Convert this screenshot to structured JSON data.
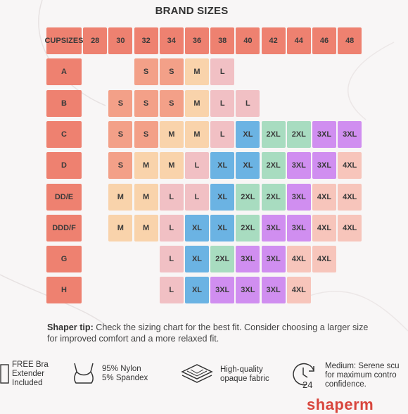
{
  "title": "BRAND SIZES",
  "cup_header": "CUP\nSIZES",
  "band_sizes": [
    "28",
    "30",
    "32",
    "34",
    "36",
    "38",
    "40",
    "42",
    "44",
    "46",
    "48"
  ],
  "rows": [
    {
      "cup": "A",
      "start": 2,
      "sizes": [
        "S",
        "S",
        "M",
        "L"
      ]
    },
    {
      "cup": "B",
      "start": 1,
      "sizes": [
        "S",
        "S",
        "S",
        "M",
        "L",
        "L"
      ]
    },
    {
      "cup": "C",
      "start": 1,
      "sizes": [
        "S",
        "S",
        "M",
        "M",
        "L",
        "XL",
        "2XL",
        "2XL",
        "3XL",
        "3XL"
      ]
    },
    {
      "cup": "D",
      "start": 1,
      "sizes": [
        "S",
        "M",
        "M",
        "L",
        "XL",
        "XL",
        "2XL",
        "3XL",
        "3XL",
        "4XL"
      ]
    },
    {
      "cup": "DD/E",
      "start": 1,
      "sizes": [
        "M",
        "M",
        "L",
        "L",
        "XL",
        "2XL",
        "2XL",
        "3XL",
        "4XL",
        "4XL"
      ]
    },
    {
      "cup": "DDD/F",
      "start": 1,
      "sizes": [
        "M",
        "M",
        "L",
        "XL",
        "XL",
        "2XL",
        "3XL",
        "3XL",
        "4XL",
        "4XL"
      ]
    },
    {
      "cup": "G",
      "start": 3,
      "sizes": [
        "L",
        "XL",
        "2XL",
        "3XL",
        "3XL",
        "4XL",
        "4XL"
      ]
    },
    {
      "cup": "H",
      "start": 3,
      "sizes": [
        "L",
        "XL",
        "3XL",
        "3XL",
        "3XL",
        "4XL"
      ]
    }
  ],
  "size_colors": {
    "S": "#f3a088",
    "M": "#f9d3ab",
    "L": "#f1c0c4",
    "XL": "#6bb3e3",
    "2XL": "#a8dcc0",
    "3XL": "#d08ef0",
    "4XL": "#f7c5bb"
  },
  "header_color": "#ee8170",
  "tip": {
    "label": "Shaper tip:",
    "text": " Check the sizing chart for the best fit. Consider choosing a larger size for improved comfort and a more relaxed fit."
  },
  "features": [
    {
      "icon": "bra-extender-icon",
      "text": "FREE Bra\nExtender\nIncluded"
    },
    {
      "icon": "bra-icon",
      "text": "95% Nylon\n5%  Spandex"
    },
    {
      "icon": "fabric-layers-icon",
      "text": "High-quality\nopaque fabric"
    },
    {
      "icon": "24-hour-clock-icon",
      "text": "Medium: Serene scu\nfor maximum contro\nconfidence."
    }
  ],
  "brand_text": "shaperm"
}
